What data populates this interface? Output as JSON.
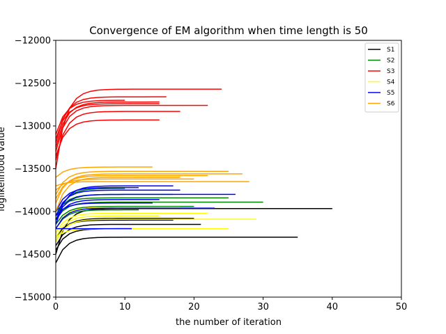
{
  "chart_data": {
    "type": "line",
    "title": "Convergence of EM algorithm when time length is 50",
    "xlabel": "the number of iteration",
    "ylabel": "loglikelihood value",
    "xlim": [
      0,
      50
    ],
    "ylim": [
      -15000,
      -12000
    ],
    "xticks": [
      0,
      10,
      20,
      30,
      40,
      50
    ],
    "yticks": [
      -15000,
      -14500,
      -14000,
      -13500,
      -13000,
      -12500,
      -12000
    ],
    "xtick_labels": [
      "0",
      "10",
      "20",
      "30",
      "40",
      "50"
    ],
    "ytick_labels": [
      "−15000",
      "−14500",
      "−14000",
      "−13500",
      "−13000",
      "−12500",
      "−12000"
    ],
    "legend": [
      {
        "name": "S1",
        "color": "#000000"
      },
      {
        "name": "S2",
        "color": "#008000"
      },
      {
        "name": "S3",
        "color": "#ff0000"
      },
      {
        "name": "S4",
        "color": "#ffff00"
      },
      {
        "name": "S5",
        "color": "#0000ff"
      },
      {
        "name": "S6",
        "color": "#ffa500"
      }
    ],
    "series": [
      {
        "name": "S1",
        "color": "#000000",
        "runs": [
          {
            "start": -14600,
            "final": -14300,
            "iters": 35
          },
          {
            "start": -14500,
            "final": -13965,
            "iters": 40
          },
          {
            "start": -14400,
            "final": -14150,
            "iters": 21
          },
          {
            "start": -14350,
            "final": -14080,
            "iters": 20
          },
          {
            "start": -14450,
            "final": -14200,
            "iters": 11
          },
          {
            "start": -14300,
            "final": -14100,
            "iters": 17
          }
        ]
      },
      {
        "name": "S2",
        "color": "#008000",
        "runs": [
          {
            "start": -14100,
            "final": -13890,
            "iters": 30
          },
          {
            "start": -14000,
            "final": -13840,
            "iters": 25
          },
          {
            "start": -14150,
            "final": -13940,
            "iters": 20
          },
          {
            "start": -14050,
            "final": -13800,
            "iters": 17
          },
          {
            "start": -14200,
            "final": -13980,
            "iters": 12
          },
          {
            "start": -14100,
            "final": -13730,
            "iters": 10
          }
        ]
      },
      {
        "name": "S3",
        "color": "#ff0000",
        "runs": [
          {
            "start": -13500,
            "final": -12570,
            "iters": 24
          },
          {
            "start": -13300,
            "final": -12760,
            "iters": 22
          },
          {
            "start": -13400,
            "final": -12830,
            "iters": 18
          },
          {
            "start": -13200,
            "final": -12660,
            "iters": 16
          },
          {
            "start": -13350,
            "final": -12930,
            "iters": 15
          },
          {
            "start": -13250,
            "final": -12720,
            "iters": 15
          },
          {
            "start": -13150,
            "final": -12740,
            "iters": 15
          },
          {
            "start": -13100,
            "final": -12700,
            "iters": 10
          }
        ]
      },
      {
        "name": "S4",
        "color": "#ffff00",
        "runs": [
          {
            "start": -14350,
            "final": -14090,
            "iters": 29
          },
          {
            "start": -14300,
            "final": -14200,
            "iters": 25
          },
          {
            "start": -14250,
            "final": -14020,
            "iters": 22
          },
          {
            "start": -14200,
            "final": -13950,
            "iters": 18
          },
          {
            "start": -14300,
            "final": -14050,
            "iters": 15
          }
        ]
      },
      {
        "name": "S5",
        "color": "#0000ff",
        "runs": [
          {
            "start": -14100,
            "final": -13800,
            "iters": 26
          },
          {
            "start": -14200,
            "final": -13960,
            "iters": 23
          },
          {
            "start": -14050,
            "final": -13750,
            "iters": 18
          },
          {
            "start": -14150,
            "final": -13700,
            "iters": 17
          },
          {
            "start": -14100,
            "final": -13860,
            "iters": 15
          },
          {
            "start": -14000,
            "final": -13720,
            "iters": 12
          },
          {
            "start": -14200,
            "final": -14200,
            "iters": 11
          },
          {
            "start": -14050,
            "final": -13900,
            "iters": 14
          }
        ]
      },
      {
        "name": "S6",
        "color": "#ffa500",
        "runs": [
          {
            "start": -13700,
            "final": -13650,
            "iters": 28
          },
          {
            "start": -13800,
            "final": -13530,
            "iters": 25
          },
          {
            "start": -13900,
            "final": -13560,
            "iters": 27
          },
          {
            "start": -13600,
            "final": -13480,
            "iters": 14
          },
          {
            "start": -13750,
            "final": -13620,
            "iters": 20
          },
          {
            "start": -14000,
            "final": -13600,
            "iters": 18
          },
          {
            "start": -13850,
            "final": -13580,
            "iters": 22
          }
        ]
      }
    ]
  }
}
